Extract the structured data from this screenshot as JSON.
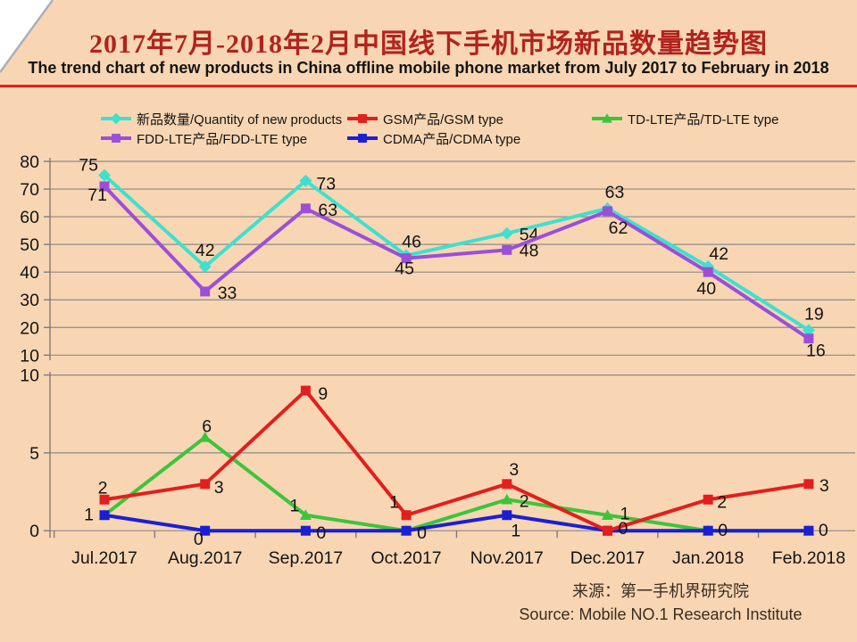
{
  "page": {
    "title_cn": "2017年7月-2018年2月中国线下手机市场新品数量趋势图",
    "title_en": "The trend chart of new products in China offline mobile phone market from July 2017 to February in 2018",
    "source_cn": "来源：第一手机界研究院",
    "source_en": "Source: Mobile NO.1 Research Institute"
  },
  "colors": {
    "background": "#F8D6B3",
    "title": "#B2231F",
    "divider": "#E6201D",
    "grid": "#8A8A8A",
    "axis": "#7C7C7C",
    "label_text": "#141414",
    "quantity": "#3EE0CF",
    "gsm": "#E31E1E",
    "tdlte": "#3CC43C",
    "fddlte": "#9B4FD8",
    "cdma": "#1B1FD4"
  },
  "legend": [
    {
      "key": "quantity",
      "label": "新品数量/Quantity of new products",
      "marker": "diamond"
    },
    {
      "key": "gsm",
      "label": "GSM产品/GSM type",
      "marker": "square"
    },
    {
      "key": "tdlte",
      "label": "TD-LTE产品/TD-LTE type",
      "marker": "triangle"
    },
    {
      "key": "fddlte",
      "label": "FDD-LTE产品/FDD-LTE type",
      "marker": "square"
    },
    {
      "key": "cdma",
      "label": "CDMA产品/CDMA type",
      "marker": "square"
    }
  ],
  "chart_data": {
    "type": "line",
    "title": "2017年7月-2018年2月中国线下手机市场新品数量趋势图",
    "categories": [
      "Jul.2017",
      "Aug.2017",
      "Sep.2017",
      "Oct.2017",
      "Nov.2017",
      "Dec.2017",
      "Jan.2018",
      "Feb.2018"
    ],
    "grid": true,
    "legend_position": "top",
    "panels": [
      {
        "name": "high-volume-panel",
        "ylim": [
          10,
          80
        ],
        "yticks": [
          10,
          20,
          30,
          40,
          50,
          60,
          70,
          80
        ],
        "series": [
          {
            "key": "quantity",
            "name": "新品数量/Quantity of new products",
            "marker": "diamond",
            "values": [
              75,
              42,
              73,
              46,
              54,
              63,
              42,
              19
            ],
            "label_offsets": [
              [
                -7,
                -5,
                "end"
              ],
              [
                0,
                -12,
                "middle"
              ],
              [
                12,
                10,
                "start"
              ],
              [
                6,
                -9,
                "middle"
              ],
              [
                14,
                8,
                "start"
              ],
              [
                8,
                -12,
                "middle"
              ],
              [
                12,
                -8,
                "middle"
              ],
              [
                6,
                -12,
                "middle"
              ]
            ]
          },
          {
            "key": "fddlte",
            "name": "FDD-LTE产品/FDD-LTE type",
            "marker": "square",
            "values": [
              71,
              33,
              63,
              45,
              48,
              62,
              40,
              16
            ],
            "label_offsets": [
              [
                3,
                16,
                "end"
              ],
              [
                14,
                8,
                "start"
              ],
              [
                14,
                8,
                "start"
              ],
              [
                -2,
                18,
                "middle"
              ],
              [
                14,
                7,
                "start"
              ],
              [
                12,
                25,
                "middle"
              ],
              [
                -2,
                25,
                "middle"
              ],
              [
                8,
                20,
                "middle"
              ]
            ]
          }
        ]
      },
      {
        "name": "low-volume-panel",
        "ylim": [
          0,
          10
        ],
        "yticks": [
          0,
          5,
          10
        ],
        "series": [
          {
            "key": "tdlte",
            "name": "TD-LTE产品/TD-LTE type",
            "marker": "triangle",
            "values": [
              1,
              6,
              1,
              0,
              2,
              1,
              0,
              0
            ],
            "label_offsets": [
              null,
              [
                2,
                -6,
                "middle"
              ],
              [
                -7,
                -4,
                "end"
              ],
              null,
              [
                14,
                8,
                "start"
              ],
              [
                14,
                5,
                "start"
              ],
              null,
              null
            ]
          },
          {
            "key": "cdma",
            "name": "CDMA产品/CDMA type",
            "marker": "square",
            "values": [
              1,
              0,
              0,
              0,
              1,
              0,
              0,
              0
            ],
            "label_offsets": [
              [
                -12,
                6,
                "end"
              ],
              [
                -2,
                16,
                "end"
              ],
              [
                12,
                9,
                "start"
              ],
              [
                12,
                9,
                "start"
              ],
              [
                10,
                24,
                "middle"
              ],
              null,
              [
                11,
                6,
                "start"
              ],
              [
                11,
                6,
                "start"
              ]
            ]
          },
          {
            "key": "gsm",
            "name": "GSM产品/GSM type",
            "marker": "square",
            "values": [
              2,
              3,
              9,
              1,
              3,
              0,
              2,
              3
            ],
            "label_offsets": [
              [
                -2,
                -7,
                "middle"
              ],
              [
                10,
                10,
                "start"
              ],
              [
                14,
                10,
                "start"
              ],
              [
                -8,
                -8,
                "end"
              ],
              [
                8,
                -10,
                "middle"
              ],
              [
                12,
                4,
                "start"
              ],
              [
                10,
                9,
                "start"
              ],
              [
                12,
                8,
                "start"
              ]
            ]
          }
        ]
      }
    ]
  }
}
